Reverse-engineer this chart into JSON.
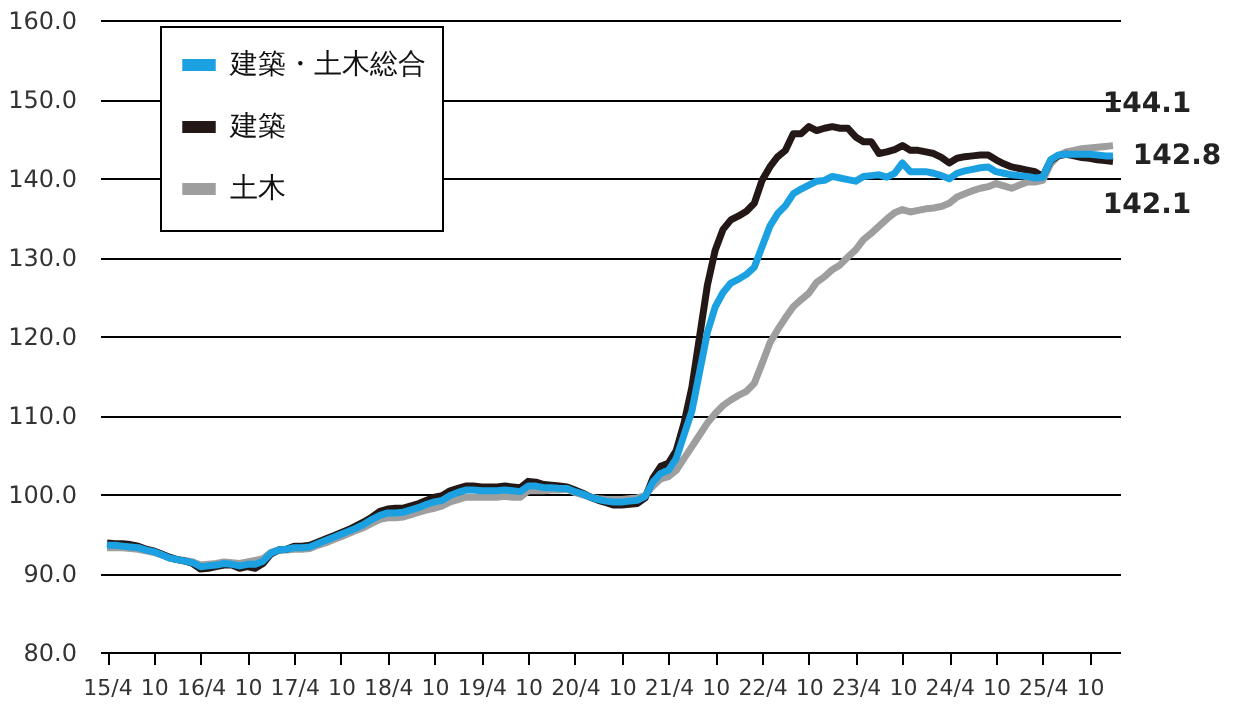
{
  "chart_data": {
    "type": "line",
    "categories": [
      "15/4",
      null,
      null,
      null,
      null,
      null,
      "10",
      null,
      null,
      null,
      null,
      null,
      "16/4",
      null,
      null,
      null,
      null,
      null,
      "10",
      null,
      null,
      null,
      null,
      null,
      "17/4",
      null,
      null,
      null,
      null,
      null,
      "10",
      null,
      null,
      null,
      null,
      null,
      "18/4",
      null,
      null,
      null,
      null,
      null,
      "10",
      null,
      null,
      null,
      null,
      null,
      "19/4",
      null,
      null,
      null,
      null,
      null,
      "10",
      null,
      null,
      null,
      null,
      null,
      "20/4",
      null,
      null,
      null,
      null,
      null,
      "10",
      null,
      null,
      null,
      null,
      null,
      "21/4",
      null,
      null,
      null,
      null,
      null,
      "10",
      null,
      null,
      null,
      null,
      null,
      "22/4",
      null,
      null,
      null,
      null,
      null,
      "10",
      null,
      null,
      null,
      null,
      null,
      "23/4",
      null,
      null,
      null,
      null,
      null,
      "10",
      null,
      null,
      null,
      null,
      null,
      "24/4",
      null,
      null,
      null,
      null,
      null,
      "10",
      null,
      null,
      null,
      null,
      null,
      "25/4",
      null,
      null,
      null,
      null,
      null,
      "10",
      null,
      null,
      null
    ],
    "series": [
      {
        "name": "建築・土木総合",
        "color": "#1ba1e2",
        "values": [
          93.5,
          93.5,
          93.4,
          93.3,
          93.2,
          92.9,
          92.7,
          92.3,
          91.9,
          91.7,
          91.5,
          91.3,
          90.8,
          90.9,
          91.0,
          91.2,
          91.1,
          90.9,
          91.1,
          91.1,
          91.5,
          92.5,
          92.9,
          93.0,
          93.2,
          93.2,
          93.3,
          93.7,
          94.1,
          94.5,
          94.9,
          95.3,
          95.7,
          96.2,
          96.8,
          97.3,
          97.6,
          97.6,
          97.7,
          98.0,
          98.3,
          98.7,
          99.0,
          99.2,
          99.8,
          100.2,
          100.5,
          100.5,
          100.4,
          100.4,
          100.4,
          100.5,
          100.4,
          100.3,
          101.0,
          101.0,
          100.8,
          100.8,
          100.7,
          100.7,
          100.3,
          100.0,
          99.6,
          99.3,
          99.1,
          99.0,
          99.0,
          99.1,
          99.2,
          99.7,
          101.5,
          102.6,
          103.0,
          104.5,
          107.5,
          110.5,
          115.5,
          120.5,
          123.7,
          125.5,
          126.7,
          127.2,
          127.8,
          128.7,
          131.3,
          133.9,
          135.5,
          136.5,
          138.0,
          138.6,
          139.1,
          139.6,
          139.7,
          140.2,
          140.0,
          139.8,
          139.6,
          140.2,
          140.3,
          140.4,
          140.1,
          140.6,
          141.9,
          140.8,
          140.8,
          140.8,
          140.6,
          140.3,
          139.9,
          140.6,
          140.9,
          141.1,
          141.3,
          141.4,
          140.8,
          140.6,
          140.4,
          140.3,
          140.2,
          140.0,
          140.1,
          142.3,
          142.9,
          143.0,
          143.0,
          143.0,
          143.0,
          142.9,
          142.8,
          142.8
        ],
        "value_labels": [
          null,
          null,
          null,
          null,
          null,
          null,
          null,
          null,
          null,
          null,
          null,
          null,
          null,
          null,
          null,
          null,
          null,
          null,
          null,
          null,
          null,
          null,
          null,
          null,
          null,
          null,
          null,
          null,
          null,
          null,
          null,
          null,
          null,
          null,
          null,
          null,
          null,
          null,
          null,
          null,
          null,
          null,
          null,
          null,
          null,
          null,
          null,
          null,
          null,
          null,
          null,
          null,
          null,
          null,
          null,
          null,
          null,
          null,
          null,
          null,
          null,
          null,
          null,
          null,
          null,
          null,
          null,
          null,
          null,
          null,
          null,
          null,
          null,
          null,
          null,
          null,
          null,
          null,
          null,
          null,
          null,
          null,
          null,
          null,
          null,
          null,
          null,
          null,
          null,
          null,
          null,
          null,
          null,
          null,
          null,
          null,
          null,
          null,
          null,
          null,
          null,
          null,
          null,
          null,
          null,
          null,
          null,
          null,
          null,
          null,
          null,
          null,
          null,
          null,
          null,
          null,
          null,
          null,
          null,
          null,
          null,
          null,
          null,
          null,
          null,
          null,
          null,
          null,
          null,
          "142.8"
        ]
      },
      {
        "name": "建築",
        "color": "#231815",
        "values": [
          93.8,
          93.7,
          93.7,
          93.6,
          93.4,
          93.0,
          92.8,
          92.4,
          92.0,
          91.7,
          91.5,
          91.2,
          90.5,
          90.6,
          90.8,
          91.0,
          91.0,
          90.6,
          90.8,
          90.6,
          91.2,
          92.4,
          92.9,
          93.0,
          93.4,
          93.4,
          93.5,
          93.9,
          94.3,
          94.7,
          95.1,
          95.5,
          96.0,
          96.5,
          97.1,
          97.8,
          98.1,
          98.2,
          98.2,
          98.5,
          98.8,
          99.2,
          99.6,
          99.8,
          100.4,
          100.7,
          101.0,
          101.0,
          100.9,
          100.9,
          100.9,
          101.0,
          100.9,
          100.8,
          101.6,
          101.5,
          101.2,
          101.1,
          101.0,
          100.9,
          100.5,
          100.1,
          99.6,
          99.2,
          98.9,
          98.6,
          98.6,
          98.7,
          98.8,
          99.5,
          102.0,
          103.5,
          103.9,
          105.5,
          109.0,
          113.5,
          120.0,
          126.5,
          130.9,
          133.5,
          134.7,
          135.2,
          135.8,
          136.8,
          139.7,
          141.4,
          142.7,
          143.5,
          145.6,
          145.6,
          146.5,
          146.0,
          146.3,
          146.5,
          146.3,
          146.3,
          145.2,
          144.6,
          144.6,
          143.1,
          143.3,
          143.6,
          144.1,
          143.5,
          143.5,
          143.3,
          143.1,
          142.6,
          141.9,
          142.5,
          142.7,
          142.8,
          142.9,
          142.9,
          142.3,
          141.8,
          141.4,
          141.2,
          141.0,
          140.8,
          140.2,
          142.2,
          142.8,
          143.0,
          142.8,
          142.6,
          142.5,
          142.3,
          142.2,
          142.1
        ],
        "value_labels": [
          null,
          null,
          null,
          null,
          null,
          null,
          null,
          null,
          null,
          null,
          null,
          null,
          null,
          null,
          null,
          null,
          null,
          null,
          null,
          null,
          null,
          null,
          null,
          null,
          null,
          null,
          null,
          null,
          null,
          null,
          null,
          null,
          null,
          null,
          null,
          null,
          null,
          null,
          null,
          null,
          null,
          null,
          null,
          null,
          null,
          null,
          null,
          null,
          null,
          null,
          null,
          null,
          null,
          null,
          null,
          null,
          null,
          null,
          null,
          null,
          null,
          null,
          null,
          null,
          null,
          null,
          null,
          null,
          null,
          null,
          null,
          null,
          null,
          null,
          null,
          null,
          null,
          null,
          null,
          null,
          null,
          null,
          null,
          null,
          null,
          null,
          null,
          null,
          null,
          null,
          null,
          null,
          null,
          null,
          null,
          null,
          null,
          null,
          null,
          null,
          null,
          null,
          null,
          null,
          null,
          null,
          null,
          null,
          null,
          null,
          null,
          null,
          null,
          null,
          null,
          null,
          null,
          null,
          null,
          null,
          null,
          null,
          null,
          null,
          null,
          null,
          null,
          null,
          null,
          "142.1"
        ]
      },
      {
        "name": "土木",
        "color": "#9e9e9f",
        "values": [
          93.2,
          93.2,
          93.2,
          93.1,
          93.0,
          92.8,
          92.6,
          92.3,
          91.9,
          91.7,
          91.6,
          91.4,
          91.0,
          91.1,
          91.2,
          91.4,
          91.3,
          91.2,
          91.4,
          91.6,
          91.8,
          92.6,
          92.9,
          92.9,
          93.0,
          93.0,
          93.1,
          93.5,
          93.8,
          94.2,
          94.6,
          95.0,
          95.4,
          95.8,
          96.3,
          96.8,
          97.0,
          97.0,
          97.1,
          97.4,
          97.7,
          98.0,
          98.2,
          98.5,
          99.0,
          99.3,
          99.6,
          99.6,
          99.6,
          99.6,
          99.6,
          99.7,
          99.6,
          99.6,
          100.4,
          100.4,
          100.4,
          100.5,
          100.5,
          100.6,
          100.2,
          99.9,
          99.6,
          99.4,
          99.3,
          99.3,
          99.3,
          99.4,
          99.5,
          99.8,
          101.0,
          101.9,
          102.2,
          103.0,
          104.5,
          106.0,
          107.5,
          109.0,
          110.2,
          111.2,
          111.9,
          112.5,
          113.0,
          114.0,
          116.5,
          119.1,
          120.8,
          122.3,
          123.7,
          124.6,
          125.4,
          126.8,
          127.5,
          128.4,
          129.0,
          130.0,
          130.9,
          132.2,
          133.0,
          133.9,
          134.8,
          135.6,
          136.0,
          135.7,
          135.9,
          136.1,
          136.2,
          136.4,
          136.8,
          137.6,
          138.0,
          138.4,
          138.7,
          138.9,
          139.3,
          139.0,
          138.7,
          139.1,
          139.5,
          139.5,
          139.7,
          141.8,
          142.8,
          143.3,
          143.5,
          143.7,
          143.8,
          143.9,
          144.0,
          144.1
        ],
        "value_labels": [
          null,
          null,
          null,
          null,
          null,
          null,
          null,
          null,
          null,
          null,
          null,
          null,
          null,
          null,
          null,
          null,
          null,
          null,
          null,
          null,
          null,
          null,
          null,
          null,
          null,
          null,
          null,
          null,
          null,
          null,
          null,
          null,
          null,
          null,
          null,
          null,
          null,
          null,
          null,
          null,
          null,
          null,
          null,
          null,
          null,
          null,
          null,
          null,
          null,
          null,
          null,
          null,
          null,
          null,
          null,
          null,
          null,
          null,
          null,
          null,
          null,
          null,
          null,
          null,
          null,
          null,
          null,
          null,
          null,
          null,
          null,
          null,
          null,
          null,
          null,
          null,
          null,
          null,
          null,
          null,
          null,
          null,
          null,
          null,
          null,
          null,
          null,
          null,
          null,
          null,
          null,
          null,
          null,
          null,
          null,
          null,
          null,
          null,
          null,
          null,
          null,
          null,
          null,
          null,
          null,
          null,
          null,
          null,
          null,
          null,
          null,
          null,
          null,
          null,
          null,
          null,
          null,
          null,
          null,
          null,
          null,
          null,
          null,
          null,
          null,
          null,
          null,
          null,
          null,
          "144.1"
        ]
      }
    ],
    "ylim": [
      80,
      160
    ],
    "yticks": [
      {
        "value": 80,
        "label": "80.0"
      },
      {
        "value": 90,
        "label": "90.0"
      },
      {
        "value": 100,
        "label": "100.0"
      },
      {
        "value": 110,
        "label": "110.0"
      },
      {
        "value": 120,
        "label": "120.0"
      },
      {
        "value": 130,
        "label": "130.0"
      },
      {
        "value": 140,
        "label": "140.0"
      },
      {
        "value": 150,
        "label": "150.0"
      },
      {
        "value": 160,
        "label": "160.0"
      }
    ],
    "grid": "y",
    "legend": "top left",
    "marker": "none",
    "line_style": "solid"
  }
}
